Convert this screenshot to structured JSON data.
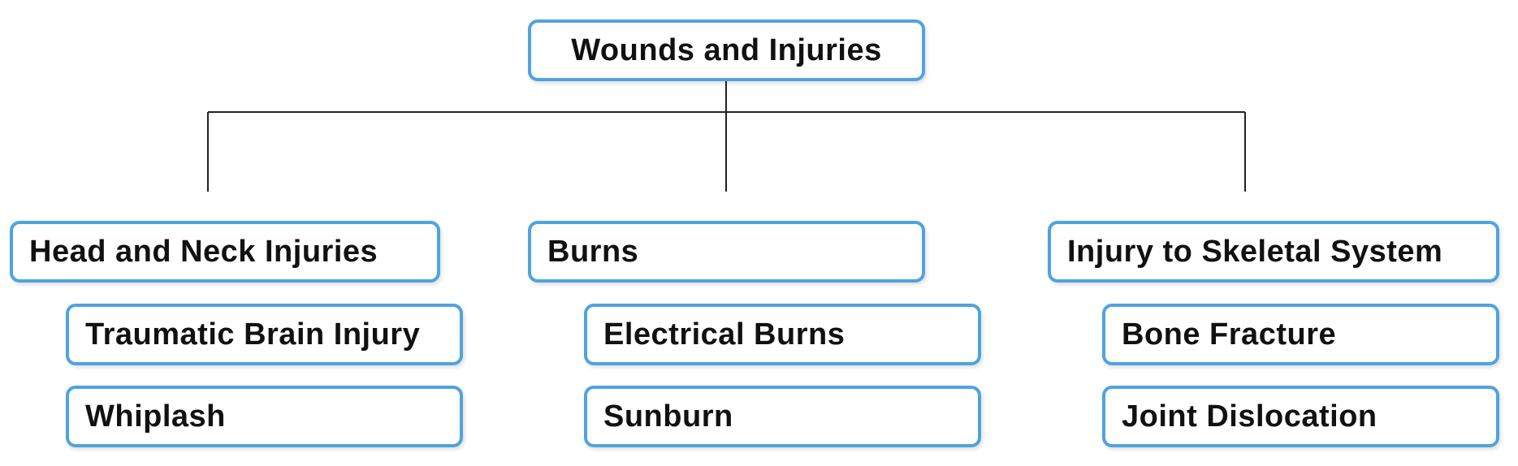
{
  "root": {
    "label": "Wounds and Injuries"
  },
  "categories": [
    {
      "label": "Head and Neck Injuries",
      "children": [
        "Traumatic Brain Injury",
        "Whiplash"
      ]
    },
    {
      "label": "Burns",
      "children": [
        "Electrical Burns",
        "Sunburn"
      ]
    },
    {
      "label": "Injury to Skeletal System",
      "children": [
        "Bone Fracture",
        "Joint Dislocation"
      ]
    }
  ],
  "colors": {
    "box_border": "#4fa3e0",
    "connector": "#222222",
    "text": "#111111",
    "background": "#ffffff"
  }
}
